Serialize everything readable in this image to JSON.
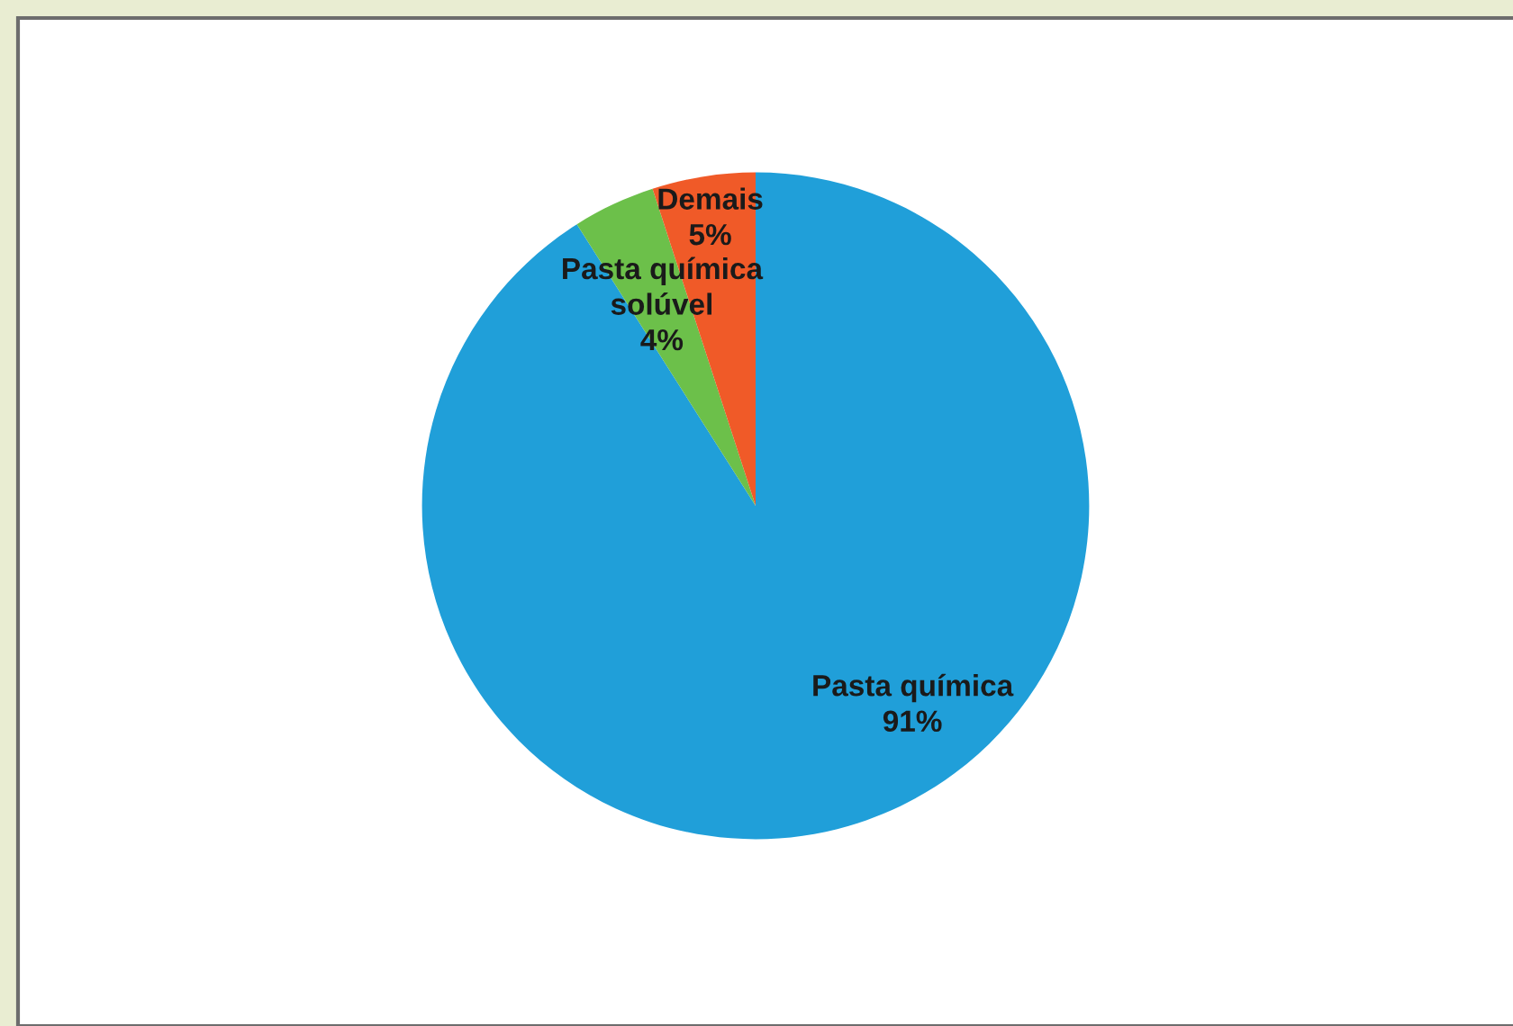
{
  "chart_data": {
    "type": "pie",
    "categories": [
      "Pasta química",
      "Pasta química solúvel",
      "Demais"
    ],
    "values": [
      91,
      4,
      5
    ],
    "colors": [
      "#209fd9",
      "#6cc04a",
      "#f05a28"
    ],
    "value_labels": [
      "91%",
      "4%",
      "5%"
    ]
  }
}
